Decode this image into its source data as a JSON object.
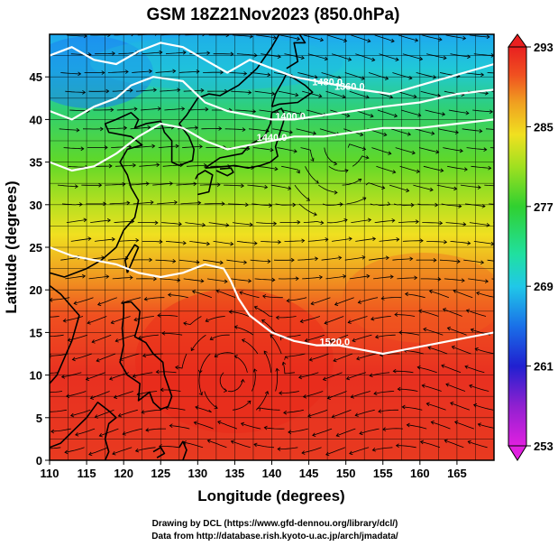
{
  "title": "GSM 18Z21Nov2023 (850.0hPa)",
  "x_axis": {
    "label": "Longitude (degrees)",
    "range": [
      110,
      170
    ],
    "ticks": [
      "110",
      "115",
      "120",
      "125",
      "130",
      "135",
      "140",
      "145",
      "150",
      "155",
      "160",
      "165"
    ]
  },
  "y_axis": {
    "label": "Latitude  (degrees)",
    "range": [
      0,
      50
    ],
    "ticks": [
      "0",
      "5",
      "10",
      "15",
      "20",
      "25",
      "30",
      "35",
      "40",
      "45"
    ]
  },
  "colorbar": {
    "range": [
      253,
      293
    ],
    "ticks": [
      "253",
      "261",
      "269",
      "277",
      "285",
      "293"
    ],
    "colors": [
      "#e020e0",
      "#9020d0",
      "#2020d0",
      "#1a70e8",
      "#20c8e8",
      "#20e0a0",
      "#30d030",
      "#a0e020",
      "#f0e020",
      "#f0a020",
      "#f05020",
      "#e82020"
    ]
  },
  "contours": [
    {
      "label": "1360.0",
      "lon": 150.5,
      "lat": 43.5
    },
    {
      "label": "1400.0",
      "lon": 142.5,
      "lat": 40.0
    },
    {
      "label": "1440.0",
      "lon": 140.0,
      "lat": 37.5
    },
    {
      "label": "1480.0",
      "lon": 147.5,
      "lat": 44.0
    },
    {
      "label": "1520.0",
      "lon": 148.5,
      "lat": 13.5
    }
  ],
  "credits": {
    "drawing": "Drawing by DCL (https://www.gfd-dennou.org/library/dcl/)",
    "data": "Data from http://database.rish.kyoto-u.ac.jp/arch/jmadata/"
  }
}
